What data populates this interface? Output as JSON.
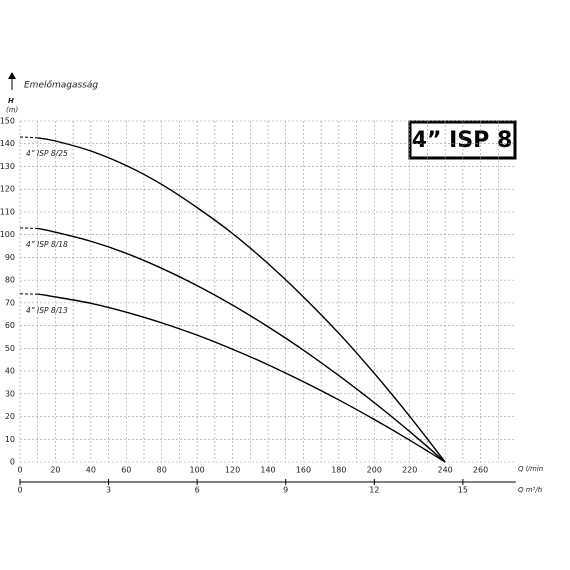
{
  "chart_data": {
    "type": "line",
    "title": "4” ISP 8",
    "y_axis_symbol": "H",
    "y_axis_unit": "(m)",
    "y_axis_label": "Emelőmagasság",
    "x_axis_label": "Q l/min",
    "x2_axis_label": "Q m³/h",
    "x": [
      0,
      10,
      20,
      40,
      60,
      80,
      100,
      120,
      140,
      160,
      180,
      200,
      220,
      240
    ],
    "series": [
      {
        "name": "4” ISP 8/25",
        "color": "#000000",
        "values": [
          143,
          142.6,
          141.2,
          136.8,
          130.4,
          122.1,
          111.9,
          100.5,
          87.3,
          72.6,
          56.6,
          39.0,
          20.1,
          0
        ]
      },
      {
        "name": "4” ISP 8/18",
        "color": "#000000",
        "values": [
          103,
          102.7,
          101.1,
          97.1,
          91.8,
          85.2,
          77.6,
          69.0,
          59.5,
          49.2,
          38.0,
          26.1,
          13.4,
          0
        ]
      },
      {
        "name": "4” ISP 8/13",
        "color": "#000000",
        "values": [
          74,
          73.8,
          72.6,
          69.8,
          65.9,
          61.2,
          55.8,
          49.6,
          42.8,
          35.3,
          27.3,
          18.7,
          9.6,
          0
        ]
      }
    ],
    "xlim": [
      0,
      280
    ],
    "xticks": [
      0,
      20,
      40,
      60,
      80,
      100,
      120,
      140,
      160,
      180,
      200,
      220,
      240,
      260
    ],
    "xminorticks": [
      10,
      30,
      50,
      70,
      90,
      110,
      130,
      150,
      170,
      190,
      210,
      230,
      250,
      270
    ],
    "ylim": [
      0,
      150
    ],
    "yticks": [
      0,
      10,
      20,
      30,
      40,
      50,
      60,
      70,
      80,
      90,
      100,
      110,
      120,
      130,
      140,
      150
    ],
    "x2lim": [
      0,
      16.8
    ],
    "x2ticks": [
      0,
      3,
      6,
      9,
      12,
      15
    ],
    "grid": true
  }
}
